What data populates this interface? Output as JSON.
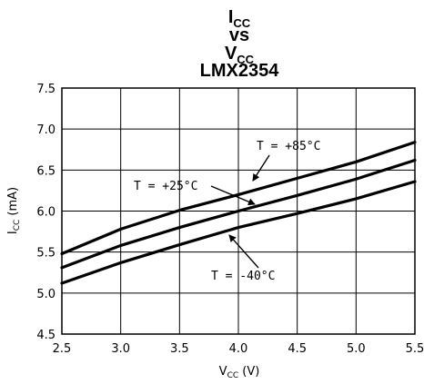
{
  "chart_data": {
    "type": "line",
    "title": {
      "line1_main": "I",
      "line1_sub": "CC",
      "line2": "vs",
      "line3_main": "V",
      "line3_sub": "CC",
      "line4": "LMX2354"
    },
    "xlabel": {
      "main": "V",
      "sub": "CC",
      "rest": " (V)"
    },
    "ylabel": {
      "main": "I",
      "sub": "CC",
      "rest": " (mA)"
    },
    "xlim": [
      2.5,
      5.5
    ],
    "ylim": [
      4.5,
      7.5
    ],
    "x_ticks": [
      "2.5",
      "3.0",
      "3.5",
      "4.0",
      "4.5",
      "5.0",
      "5.5"
    ],
    "y_ticks": [
      "4.5",
      "5.0",
      "5.5",
      "6.0",
      "6.5",
      "7.0",
      "7.5"
    ],
    "grid": true,
    "series": [
      {
        "name": "T = +85°C",
        "x": [
          2.5,
          3.0,
          3.5,
          4.0,
          4.5,
          5.0,
          5.5
        ],
        "y": [
          5.48,
          5.78,
          6.01,
          6.2,
          6.4,
          6.6,
          6.84
        ]
      },
      {
        "name": "T = +25°C",
        "x": [
          2.5,
          3.0,
          3.5,
          4.0,
          4.5,
          5.0,
          5.5
        ],
        "y": [
          5.31,
          5.58,
          5.8,
          6.0,
          6.19,
          6.39,
          6.62
        ]
      },
      {
        "name": "T = -40°C",
        "x": [
          2.5,
          3.0,
          3.5,
          4.0,
          4.5,
          5.0,
          5.5
        ],
        "y": [
          5.12,
          5.37,
          5.59,
          5.8,
          5.97,
          6.15,
          6.36
        ]
      }
    ],
    "annotations": [
      {
        "text": "T = +85°C",
        "series": 0
      },
      {
        "text": "T = +25°C",
        "series": 1
      },
      {
        "text": "T = -40°C",
        "series": 2
      }
    ]
  }
}
